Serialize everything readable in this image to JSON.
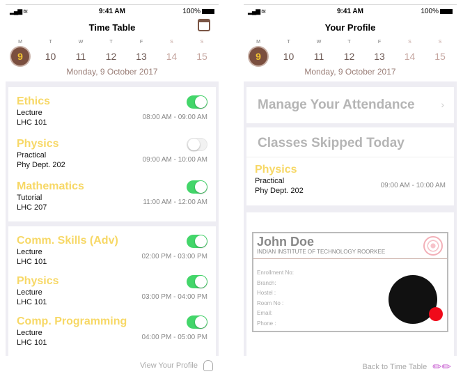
{
  "status": {
    "time": "9:41 AM",
    "battery": "100%"
  },
  "week": [
    {
      "l": "M",
      "n": "9"
    },
    {
      "l": "T",
      "n": "10"
    },
    {
      "l": "W",
      "n": "11"
    },
    {
      "l": "T",
      "n": "12"
    },
    {
      "l": "F",
      "n": "13"
    },
    {
      "l": "S",
      "n": "14"
    },
    {
      "l": "S",
      "n": "15"
    }
  ],
  "date": "Monday, 9 October 2017",
  "timetable": {
    "title": "Time Table",
    "cards": [
      [
        {
          "subject": "Ethics",
          "type": "Lecture",
          "room": "LHC 101",
          "time": "08:00 AM - 09:00 AM",
          "on": true
        },
        {
          "subject": "Physics",
          "type": "Practical",
          "room": "Phy Dept. 202",
          "time": "09:00 AM - 10:00 AM",
          "on": false
        },
        {
          "subject": "Mathematics",
          "type": "Tutorial",
          "room": "LHC 207",
          "time": "11:00 AM - 12:00 AM",
          "on": true
        }
      ],
      [
        {
          "subject": "Comm. Skills (Adv)",
          "type": "Lecture",
          "room": "LHC 101",
          "time": "02:00 PM - 03:00 PM",
          "on": true
        },
        {
          "subject": "Physics",
          "type": "Lecture",
          "room": "LHC 101",
          "time": "03:00 PM - 04:00 PM",
          "on": true
        },
        {
          "subject": "Comp. Programming",
          "type": "Lecture",
          "room": "LHC 101",
          "time": "04:00 PM - 05:00 PM",
          "on": true
        }
      ]
    ],
    "footer": "View Your Profile"
  },
  "profile": {
    "title": "Your Profile",
    "manage": "Manage Your Attendance",
    "skipped": "Classes Skipped Today",
    "skipped_item": {
      "subject": "Physics",
      "type": "Practical",
      "room": "Phy Dept. 202",
      "time": "09:00 AM - 10:00 AM"
    },
    "name": "John Doe",
    "institute": "INDIAN INSTITUTE OF TECHNOLOGY ROORKEE",
    "fields": [
      "Enrollment No:",
      "Branch:",
      "Hostel :",
      "Room No :",
      "Email:",
      "Phone :"
    ],
    "footer": "Back to Time Table"
  },
  "colors": {
    "accent": "#7b4f3f",
    "subject": "#f7d866",
    "toggle_on": "#43d66a"
  }
}
